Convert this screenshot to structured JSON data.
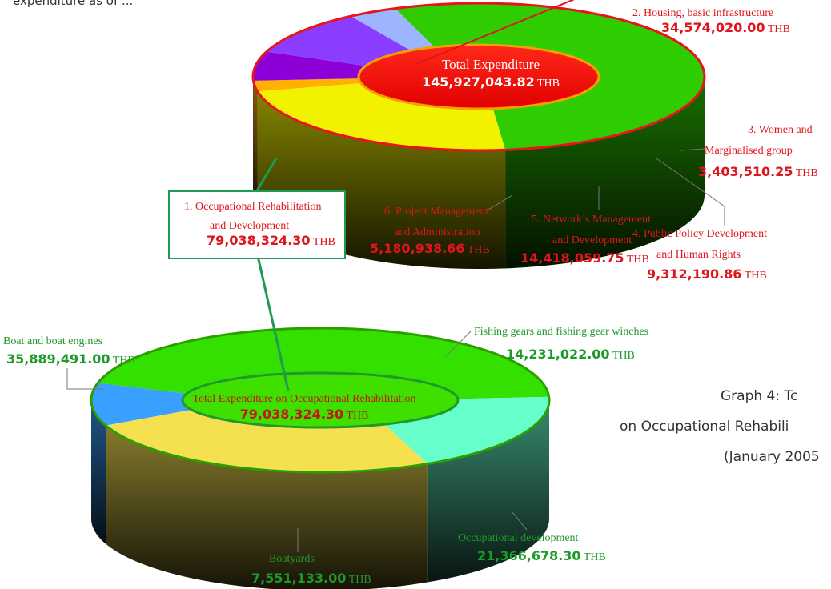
{
  "header": {
    "fragment": "expenditure as of ..."
  },
  "caption": {
    "line1": "Graph 4: Tc",
    "line2": "on Occupational Rehabili",
    "line3": "(January 2005"
  },
  "colors": {
    "red": "#e0141c",
    "green": "#1f9a2a",
    "housing": "#f2f200",
    "women": "#ffb000",
    "policy": "#8e00d8",
    "network": "#8a3cff",
    "project": "#9db4ff",
    "occupational": "#2ecc00",
    "boat": "#33e000",
    "fishing": "#66ffcc",
    "occdev": "#f5e050",
    "boatyards": "#3aa0ff"
  },
  "chart_data": [
    {
      "type": "pie",
      "title": "Total Expenditure",
      "total": "145,927,043.82",
      "total_unit": "THB",
      "slices": [
        {
          "key": "occupational",
          "label_line1": "1. Occupational Rehabilitation",
          "label_line2": "and Development",
          "value_text": "79,038,324.30",
          "value": 79038324.3,
          "unit": "THB"
        },
        {
          "key": "housing",
          "label_line1": "2. Housing, basic infrastructure",
          "label_line2": "",
          "value_text": "34,574,020.00",
          "value": 34574020.0,
          "unit": "THB"
        },
        {
          "key": "women",
          "label_line1": "3. Women and",
          "label_line2": "Marginalised group",
          "value_text": "3,403,510.25",
          "value": 3403510.25,
          "unit": "THB"
        },
        {
          "key": "policy",
          "label_line1": "4. Public Policy Development",
          "label_line2": "and Human Rights",
          "value_text": "9,312,190.86",
          "value": 9312190.86,
          "unit": "THB"
        },
        {
          "key": "network",
          "label_line1": "5. Network’s Management",
          "label_line2": "and Development",
          "value_text": "14,418,059.75",
          "value": 14418059.75,
          "unit": "THB"
        },
        {
          "key": "project",
          "label_line1": "6. Project Management",
          "label_line2": "and Administration",
          "value_text": "5,180,938.66",
          "value": 5180938.66,
          "unit": "THB"
        }
      ]
    },
    {
      "type": "pie",
      "title": "Total Expenditure on Occupational Rehabilitation",
      "total": "79,038,324.30",
      "total_unit": "THB",
      "slices": [
        {
          "key": "boat",
          "label_line1": "Boat and boat engines",
          "value_text": "35,889,491.00",
          "value": 35889491.0,
          "unit": "THB"
        },
        {
          "key": "fishing",
          "label_line1": "Fishing gears and fishing gear winches",
          "value_text": "14,231,022.00",
          "value": 14231022.0,
          "unit": "THB"
        },
        {
          "key": "occdev",
          "label_line1": "Occupational development",
          "value_text": "21,366,678.30",
          "value": 21366678.3,
          "unit": "THB"
        },
        {
          "key": "boatyards",
          "label_line1": "Boatyards",
          "value_text": "7,551,133.00",
          "value": 7551133.0,
          "unit": "THB"
        }
      ]
    }
  ]
}
